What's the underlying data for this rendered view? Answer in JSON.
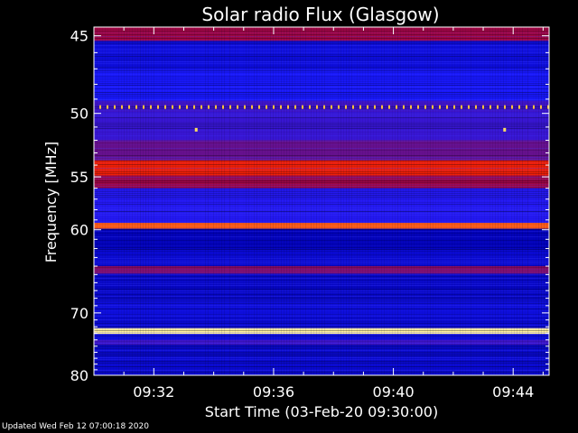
{
  "chart_data": {
    "type": "heatmap",
    "title": "Solar radio Flux (Glasgow)",
    "xlabel": "Start Time (03-Feb-20 09:30:00)",
    "ylabel": "Frequency [MHz]",
    "x_ticks": [
      "09:32",
      "09:36",
      "09:40",
      "09:44"
    ],
    "x_tick_minutes": [
      2,
      6,
      10,
      14
    ],
    "xlim_minutes": [
      0,
      15.2
    ],
    "y_ticks": [
      45,
      50,
      55,
      60,
      70,
      80
    ],
    "y_scale": "reciprocal",
    "ylim": [
      44.5,
      80
    ],
    "bands": [
      {
        "f_low": 44.5,
        "f_high": 45.3,
        "level": 0.5
      },
      {
        "f_low": 45.3,
        "f_high": 47.0,
        "level": 0.22
      },
      {
        "f_low": 47.0,
        "f_high": 49.1,
        "level": 0.28
      },
      {
        "f_low": 49.1,
        "f_high": 49.9,
        "level": 0.34
      },
      {
        "f_low": 49.9,
        "f_high": 52.0,
        "level": 0.33
      },
      {
        "f_low": 52.0,
        "f_high": 53.6,
        "level": 0.4
      },
      {
        "f_low": 53.6,
        "f_high": 54.9,
        "level": 0.68
      },
      {
        "f_low": 54.9,
        "f_high": 56.0,
        "level": 0.5
      },
      {
        "f_low": 56.0,
        "f_high": 59.3,
        "level": 0.3
      },
      {
        "f_low": 59.3,
        "f_high": 59.9,
        "level": 0.78
      },
      {
        "f_low": 59.9,
        "f_high": 62.0,
        "level": 0.16
      },
      {
        "f_low": 62.0,
        "f_high": 64.0,
        "level": 0.2
      },
      {
        "f_low": 64.0,
        "f_high": 64.9,
        "level": 0.45
      },
      {
        "f_low": 64.9,
        "f_high": 68.0,
        "level": 0.18
      },
      {
        "f_low": 68.0,
        "f_high": 70.5,
        "level": 0.22
      },
      {
        "f_low": 70.5,
        "f_high": 72.2,
        "level": 0.2
      },
      {
        "f_low": 72.2,
        "f_high": 73.1,
        "level": 0.98
      },
      {
        "f_low": 73.1,
        "f_high": 74.0,
        "level": 0.22
      },
      {
        "f_low": 74.0,
        "f_high": 74.8,
        "level": 0.34
      },
      {
        "f_low": 74.8,
        "f_high": 80.0,
        "level": 0.2
      }
    ],
    "colormap": [
      "#000030",
      "#0000b0",
      "#1a1aff",
      "#7a0e6e",
      "#c8001a",
      "#ff2a00",
      "#ff9a30",
      "#ffffb0"
    ],
    "grid": false,
    "background": "#000000",
    "axis_color": "#ffffff"
  },
  "footer": {
    "updated": "Updated Wed Feb 12 07:00:18 2020"
  }
}
